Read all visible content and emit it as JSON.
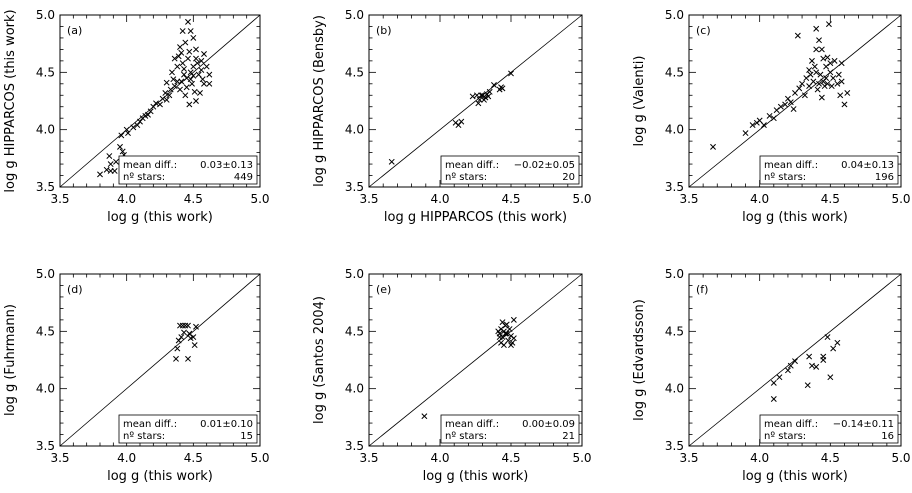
{
  "chart_data": [
    {
      "type": "scatter",
      "panel_label": "(a)",
      "xlabel": "log g (this work)",
      "ylabel": "log g HIPPARCOS (this work)",
      "xlim": [
        3.5,
        5.0
      ],
      "ylim": [
        3.5,
        5.0
      ],
      "xticks": [
        "3.5",
        "4.0",
        "4.5",
        "5.0"
      ],
      "yticks": [
        "3.5",
        "4.0",
        "4.5",
        "5.0"
      ],
      "identity_line": true,
      "marker": "x",
      "stats": {
        "mean_label": "mean diff.:",
        "mean_value": "0.03±0.13",
        "n_label": "nº stars:",
        "n_value": "449"
      },
      "points": [
        [
          3.8,
          3.61
        ],
        [
          3.85,
          3.65
        ],
        [
          3.88,
          3.64
        ],
        [
          3.91,
          3.64
        ],
        [
          3.88,
          3.7
        ],
        [
          3.92,
          3.72
        ],
        [
          3.87,
          3.77
        ],
        [
          3.95,
          3.85
        ],
        [
          3.97,
          3.81
        ],
        [
          3.98,
          3.78
        ],
        [
          3.96,
          3.95
        ],
        [
          4.01,
          3.97
        ],
        [
          4.0,
          4.0
        ],
        [
          4.05,
          4.02
        ],
        [
          4.08,
          4.04
        ],
        [
          4.1,
          4.07
        ],
        [
          4.12,
          4.1
        ],
        [
          4.14,
          4.12
        ],
        [
          4.16,
          4.13
        ],
        [
          4.18,
          4.16
        ],
        [
          4.2,
          4.2
        ],
        [
          4.22,
          4.23
        ],
        [
          4.25,
          4.22
        ],
        [
          4.27,
          4.27
        ],
        [
          4.29,
          4.32
        ],
        [
          4.3,
          4.26
        ],
        [
          4.32,
          4.3
        ],
        [
          4.33,
          4.35
        ],
        [
          4.36,
          4.38
        ],
        [
          4.38,
          4.42
        ],
        [
          4.34,
          4.5
        ],
        [
          4.36,
          4.62
        ],
        [
          4.4,
          4.72
        ],
        [
          4.42,
          4.86
        ],
        [
          4.46,
          4.94
        ],
        [
          4.5,
          4.8
        ],
        [
          4.52,
          4.7
        ],
        [
          4.56,
          4.6
        ],
        [
          4.6,
          4.55
        ],
        [
          4.62,
          4.48
        ],
        [
          4.58,
          4.4
        ],
        [
          4.55,
          4.32
        ],
        [
          4.52,
          4.25
        ],
        [
          4.47,
          4.22
        ],
        [
          4.44,
          4.3
        ],
        [
          4.4,
          4.35
        ],
        [
          4.45,
          4.45
        ],
        [
          4.48,
          4.5
        ],
        [
          4.5,
          4.55
        ],
        [
          4.42,
          4.58
        ],
        [
          4.46,
          4.62
        ],
        [
          4.52,
          4.62
        ],
        [
          4.49,
          4.4
        ],
        [
          4.43,
          4.48
        ],
        [
          4.38,
          4.55
        ],
        [
          4.54,
          4.48
        ],
        [
          4.56,
          4.52
        ],
        [
          4.41,
          4.42
        ],
        [
          4.47,
          4.68
        ],
        [
          4.39,
          4.64
        ],
        [
          4.57,
          4.44
        ],
        [
          4.45,
          4.37
        ],
        [
          4.51,
          4.33
        ],
        [
          4.44,
          4.76
        ],
        [
          4.53,
          4.58
        ],
        [
          4.48,
          4.86
        ],
        [
          4.58,
          4.66
        ],
        [
          4.35,
          4.44
        ],
        [
          4.3,
          4.41
        ],
        [
          4.62,
          4.4
        ],
        [
          4.48,
          4.44
        ],
        [
          4.43,
          4.53
        ],
        [
          4.5,
          4.47
        ],
        [
          4.41,
          4.67
        ]
      ]
    },
    {
      "type": "scatter",
      "panel_label": "(b)",
      "xlabel": "log g HIPPARCOS (this work)",
      "ylabel": "log g HIPPARCOS (Bensby)",
      "xlim": [
        3.5,
        5.0
      ],
      "ylim": [
        3.5,
        5.0
      ],
      "xticks": [
        "3.5",
        "4.0",
        "4.5",
        "5.0"
      ],
      "yticks": [
        "3.5",
        "4.0",
        "4.5",
        "5.0"
      ],
      "identity_line": true,
      "marker": "x",
      "stats": {
        "mean_label": "mean diff.:",
        "mean_value": "−0.02±0.05",
        "n_label": "nº stars:",
        "n_value": "20"
      },
      "points": [
        [
          3.66,
          3.72
        ],
        [
          4.11,
          4.06
        ],
        [
          4.15,
          4.07
        ],
        [
          4.13,
          4.04
        ],
        [
          4.23,
          4.29
        ],
        [
          4.27,
          4.23
        ],
        [
          4.3,
          4.3
        ],
        [
          4.32,
          4.28
        ],
        [
          4.33,
          4.31
        ],
        [
          4.35,
          4.33
        ],
        [
          4.29,
          4.3
        ],
        [
          4.31,
          4.26
        ],
        [
          4.38,
          4.39
        ],
        [
          4.42,
          4.35
        ],
        [
          4.43,
          4.37
        ],
        [
          4.44,
          4.36
        ],
        [
          4.5,
          4.49
        ],
        [
          4.28,
          4.26
        ],
        [
          4.34,
          4.29
        ],
        [
          4.26,
          4.3
        ]
      ]
    },
    {
      "type": "scatter",
      "panel_label": "(c)",
      "xlabel": "log g (this work)",
      "ylabel": "log g (Valenti)",
      "xlim": [
        3.5,
        5.0
      ],
      "ylim": [
        3.5,
        5.0
      ],
      "xticks": [
        "3.5",
        "4.0",
        "4.5",
        "5.0"
      ],
      "yticks": [
        "3.5",
        "4.0",
        "4.5",
        "5.0"
      ],
      "identity_line": true,
      "marker": "x",
      "stats": {
        "mean_label": "mean diff.:",
        "mean_value": "0.04±0.13",
        "n_label": "nº stars:",
        "n_value": "196"
      },
      "points": [
        [
          3.67,
          3.85
        ],
        [
          3.9,
          3.97
        ],
        [
          3.95,
          4.04
        ],
        [
          3.98,
          4.06
        ],
        [
          4.0,
          4.08
        ],
        [
          4.03,
          4.04
        ],
        [
          4.07,
          4.12
        ],
        [
          4.1,
          4.1
        ],
        [
          4.12,
          4.17
        ],
        [
          4.15,
          4.2
        ],
        [
          4.18,
          4.22
        ],
        [
          4.2,
          4.27
        ],
        [
          4.22,
          4.24
        ],
        [
          4.25,
          4.32
        ],
        [
          4.28,
          4.36
        ],
        [
          4.3,
          4.4
        ],
        [
          4.33,
          4.45
        ],
        [
          4.35,
          4.52
        ],
        [
          4.37,
          4.6
        ],
        [
          4.4,
          4.7
        ],
        [
          4.42,
          4.78
        ],
        [
          4.45,
          4.62
        ],
        [
          4.47,
          4.55
        ],
        [
          4.5,
          4.5
        ],
        [
          4.52,
          4.45
        ],
        [
          4.55,
          4.4
        ],
        [
          4.57,
          4.3
        ],
        [
          4.6,
          4.22
        ],
        [
          4.62,
          4.32
        ],
        [
          4.58,
          4.58
        ],
        [
          4.4,
          4.88
        ],
        [
          4.49,
          4.92
        ],
        [
          4.27,
          4.82
        ],
        [
          4.38,
          4.42
        ],
        [
          4.41,
          4.35
        ],
        [
          4.44,
          4.28
        ],
        [
          4.46,
          4.38
        ],
        [
          4.43,
          4.48
        ],
        [
          4.48,
          4.63
        ],
        [
          4.36,
          4.48
        ],
        [
          4.32,
          4.3
        ],
        [
          4.24,
          4.18
        ],
        [
          4.45,
          4.42
        ],
        [
          4.5,
          4.58
        ],
        [
          4.53,
          4.6
        ],
        [
          4.39,
          4.55
        ],
        [
          4.47,
          4.45
        ],
        [
          4.42,
          4.4
        ],
        [
          4.35,
          4.38
        ],
        [
          4.56,
          4.48
        ],
        [
          4.44,
          4.7
        ],
        [
          4.51,
          4.38
        ],
        [
          4.4,
          4.5
        ],
        [
          4.48,
          4.4
        ],
        [
          4.58,
          4.42
        ]
      ]
    },
    {
      "type": "scatter",
      "panel_label": "(d)",
      "xlabel": "log g (this work)",
      "ylabel": "log g (Fuhrmann)",
      "xlim": [
        3.5,
        5.0
      ],
      "ylim": [
        3.5,
        5.0
      ],
      "xticks": [
        "3.5",
        "4.0",
        "4.5",
        "5.0"
      ],
      "yticks": [
        "3.5",
        "4.0",
        "4.5",
        "5.0"
      ],
      "identity_line": true,
      "marker": "x",
      "stats": {
        "mean_label": "mean diff.:",
        "mean_value": "0.01±0.10",
        "n_label": "nº stars:",
        "n_value": "15"
      },
      "points": [
        [
          4.37,
          4.26
        ],
        [
          4.38,
          4.35
        ],
        [
          4.39,
          4.42
        ],
        [
          4.4,
          4.55
        ],
        [
          4.42,
          4.55
        ],
        [
          4.44,
          4.55
        ],
        [
          4.46,
          4.55
        ],
        [
          4.43,
          4.49
        ],
        [
          4.41,
          4.45
        ],
        [
          4.46,
          4.26
        ],
        [
          4.48,
          4.44
        ],
        [
          4.5,
          4.45
        ],
        [
          4.51,
          4.38
        ],
        [
          4.52,
          4.54
        ],
        [
          4.47,
          4.48
        ]
      ]
    },
    {
      "type": "scatter",
      "panel_label": "(e)",
      "xlabel": "log g (this work)",
      "ylabel": "log g (Santos 2004)",
      "xlim": [
        3.5,
        5.0
      ],
      "ylim": [
        3.5,
        5.0
      ],
      "xticks": [
        "3.5",
        "4.0",
        "4.5",
        "5.0"
      ],
      "yticks": [
        "3.5",
        "4.0",
        "4.5",
        "5.0"
      ],
      "identity_line": true,
      "marker": "x",
      "stats": {
        "mean_label": "mean diff.:",
        "mean_value": "0.00±0.09",
        "n_label": "nº stars:",
        "n_value": "21"
      },
      "points": [
        [
          3.89,
          3.76
        ],
        [
          4.41,
          4.5
        ],
        [
          4.42,
          4.48
        ],
        [
          4.43,
          4.52
        ],
        [
          4.44,
          4.45
        ],
        [
          4.45,
          4.5
        ],
        [
          4.46,
          4.55
        ],
        [
          4.47,
          4.48
        ],
        [
          4.48,
          4.42
        ],
        [
          4.49,
          4.52
        ],
        [
          4.5,
          4.46
        ],
        [
          4.51,
          4.4
        ],
        [
          4.52,
          4.6
        ],
        [
          4.43,
          4.4
        ],
        [
          4.45,
          4.38
        ],
        [
          4.47,
          4.56
        ],
        [
          4.44,
          4.58
        ],
        [
          4.5,
          4.38
        ],
        [
          4.52,
          4.44
        ],
        [
          4.46,
          4.48
        ],
        [
          4.42,
          4.45
        ]
      ]
    },
    {
      "type": "scatter",
      "panel_label": "(f)",
      "xlabel": "log g (this work)",
      "ylabel": "log g (Edvardsson)",
      "xlim": [
        3.5,
        5.0
      ],
      "ylim": [
        3.5,
        5.0
      ],
      "xticks": [
        "3.5",
        "4.0",
        "4.5",
        "5.0"
      ],
      "yticks": [
        "3.5",
        "4.0",
        "4.5",
        "5.0"
      ],
      "identity_line": true,
      "marker": "x",
      "stats": {
        "mean_label": "mean diff.:",
        "mean_value": "−0.14±0.11",
        "n_label": "nº stars:",
        "n_value": "16"
      },
      "points": [
        [
          4.1,
          3.91
        ],
        [
          4.1,
          4.05
        ],
        [
          4.14,
          4.1
        ],
        [
          4.2,
          4.16
        ],
        [
          4.22,
          4.2
        ],
        [
          4.25,
          4.24
        ],
        [
          4.34,
          4.03
        ],
        [
          4.35,
          4.28
        ],
        [
          4.37,
          4.2
        ],
        [
          4.4,
          4.19
        ],
        [
          4.45,
          4.28
        ],
        [
          4.45,
          4.25
        ],
        [
          4.48,
          4.45
        ],
        [
          4.5,
          4.1
        ],
        [
          4.52,
          4.35
        ],
        [
          4.55,
          4.4
        ]
      ]
    }
  ]
}
